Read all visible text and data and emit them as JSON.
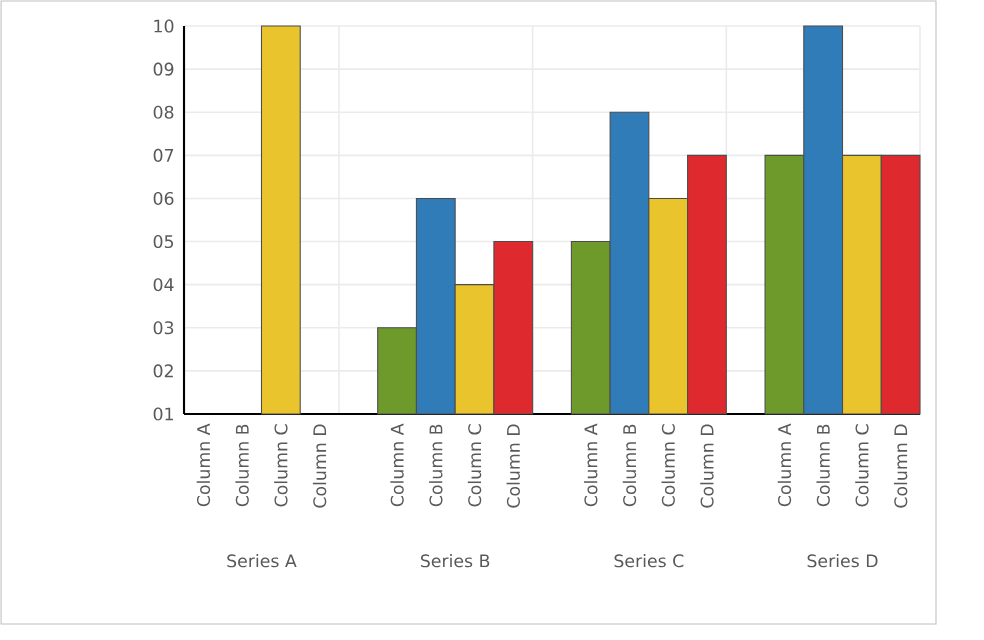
{
  "chart_data": {
    "type": "bar",
    "categories": [
      "Column A",
      "Column B",
      "Column C",
      "Column D",
      null,
      "Column A",
      "Column B",
      "Column C",
      "Column D",
      null,
      "Column A",
      "Column B",
      "Column C",
      "Column D",
      null,
      "Column A",
      "Column B",
      "Column C",
      "Column D"
    ],
    "values": [
      null,
      null,
      10,
      null,
      null,
      3,
      6,
      4,
      5,
      null,
      5,
      8,
      6,
      7,
      null,
      7,
      10,
      7,
      7
    ],
    "colors": [
      "#6e9a2c",
      "#2f7cb8",
      "#e9c42c",
      "#de2a2e",
      "#ffffff",
      "#6e9a2c",
      "#2f7cb8",
      "#e9c42c",
      "#de2a2e",
      "#ffffff",
      "#6e9a2c",
      "#2f7cb8",
      "#e9c42c",
      "#de2a2e",
      "#ffffff",
      "#6e9a2c",
      "#2f7cb8",
      "#e9c42c",
      "#de2a2e"
    ],
    "annotations": [
      "Series A",
      "Series B",
      "Series C",
      "Series D"
    ],
    "ylim": [
      1,
      10
    ],
    "yticks": [
      {
        "value": 1,
        "label": "01"
      },
      {
        "value": 2,
        "label": "02"
      },
      {
        "value": 3,
        "label": "03"
      },
      {
        "value": 4,
        "label": "04"
      },
      {
        "value": 5,
        "label": "05"
      },
      {
        "value": 6,
        "label": "06"
      },
      {
        "value": 7,
        "label": "07"
      },
      {
        "value": 8,
        "label": "08"
      },
      {
        "value": 9,
        "label": "09"
      },
      10
    ],
    "grid": true
  }
}
